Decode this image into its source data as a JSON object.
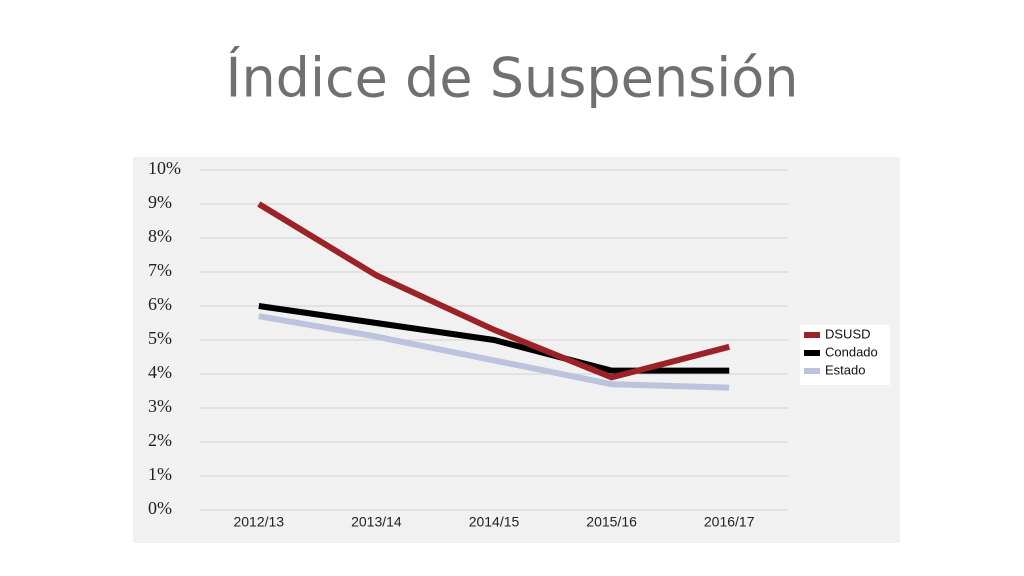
{
  "chart_data": {
    "type": "line",
    "title": "Índice de Suspensión",
    "categories": [
      "2012/13",
      "2013/14",
      "2014/15",
      "2015/16",
      "2016/17"
    ],
    "series": [
      {
        "name": "DSUSD",
        "color": "#9b2226",
        "values": [
          9.0,
          6.9,
          5.3,
          3.9,
          4.8
        ]
      },
      {
        "name": "Condado",
        "color": "#000000",
        "values": [
          6.0,
          5.5,
          5.0,
          4.1,
          4.1
        ]
      },
      {
        "name": "Estado",
        "color": "#bcc3dc",
        "values": [
          5.7,
          5.1,
          4.4,
          3.7,
          3.6
        ]
      }
    ],
    "ylim": [
      0,
      10
    ],
    "yticks": [
      {
        "value": 0,
        "label": "0%"
      },
      {
        "value": 1,
        "label": "1%"
      },
      {
        "value": 2,
        "label": "2%"
      },
      {
        "value": 3,
        "label": "3%"
      },
      {
        "value": 4,
        "label": "4%"
      },
      {
        "value": 5,
        "label": "5%"
      },
      {
        "value": 6,
        "label": "6%"
      },
      {
        "value": 7,
        "label": "7%"
      },
      {
        "value": 8,
        "label": "8%"
      },
      {
        "value": 9,
        "label": "9%"
      },
      {
        "value": 10,
        "label": "10%"
      }
    ],
    "grid": true,
    "legend": "right"
  }
}
